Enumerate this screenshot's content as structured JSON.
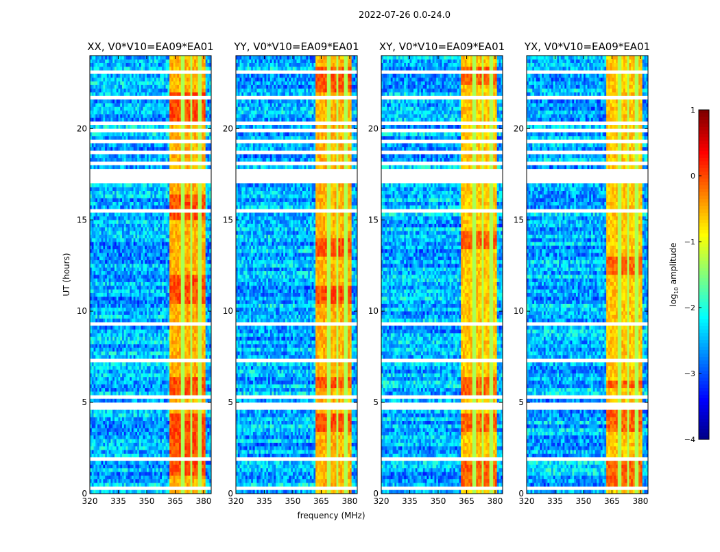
{
  "chart_data": {
    "type": "heatmap",
    "title": "2022-07-26 0.0-24.0",
    "xlabel": "frequency (MHz)",
    "ylabel": "UT (hours)",
    "xlim": [
      320,
      384
    ],
    "ylim": [
      0,
      24
    ],
    "xticks": [
      "320",
      "335",
      "350",
      "365",
      "380"
    ],
    "yticks": [
      "0",
      "5",
      "10",
      "15",
      "20"
    ],
    "panels": [
      {
        "title": "XX, V0*V10=EA09*EA01",
        "band_level": -0.5,
        "hot_hours": [
          [
            1,
            4.5
          ],
          [
            5.2,
            6.5
          ],
          [
            10.5,
            12
          ],
          [
            15,
            16.5
          ],
          [
            20.5,
            22
          ]
        ]
      },
      {
        "title": "YY, V0*V10=EA09*EA01",
        "band_level": -0.5,
        "hot_hours": [
          [
            3.5,
            4.5
          ],
          [
            5.8,
            6.5
          ],
          [
            10.5,
            11.5
          ],
          [
            13,
            14
          ],
          [
            22,
            23.5
          ]
        ]
      },
      {
        "title": "XY, V0*V10=EA09*EA01",
        "band_level": -0.6,
        "hot_hours": [
          [
            0.5,
            2
          ],
          [
            3.5,
            4.5
          ],
          [
            5.5,
            6.5
          ],
          [
            13.5,
            14.5
          ],
          [
            22.5,
            23.5
          ]
        ]
      },
      {
        "title": "YX, V0*V10=EA09*EA01",
        "band_level": -0.6,
        "hot_hours": [
          [
            0.5,
            2
          ],
          [
            3.5,
            4.6
          ],
          [
            5.8,
            6.3
          ],
          [
            12,
            13
          ]
        ]
      }
    ],
    "background_level": -2.5,
    "bright_band_mhz": [
      362,
      381
    ],
    "band_gaps_mhz": [
      369,
      373.5,
      378
    ],
    "flagged_hours": [
      [
        0.3,
        0.45
      ],
      [
        1.85,
        2.0
      ],
      [
        4.65,
        5.0
      ],
      [
        5.25,
        5.35
      ],
      [
        7.2,
        7.4
      ],
      [
        9.2,
        9.45
      ],
      [
        11.4,
        11.5
      ],
      [
        15.5,
        15.6
      ],
      [
        17.1,
        17.8
      ],
      [
        18.1,
        18.3
      ],
      [
        18.6,
        18.8
      ],
      [
        19.3,
        19.5
      ],
      [
        19.8,
        20.0
      ],
      [
        20.3,
        20.5
      ],
      [
        21.6,
        21.8
      ],
      [
        23.05,
        23.15
      ]
    ],
    "colorbar": {
      "label": "log10 amplitude",
      "label_main": "log",
      "label_sub": "10",
      "label_rest": " amplitude",
      "range": [
        -4,
        1
      ],
      "ticks": [
        "1",
        "0",
        "−1",
        "−2",
        "−3",
        "−4"
      ],
      "colormap": "jet"
    }
  }
}
